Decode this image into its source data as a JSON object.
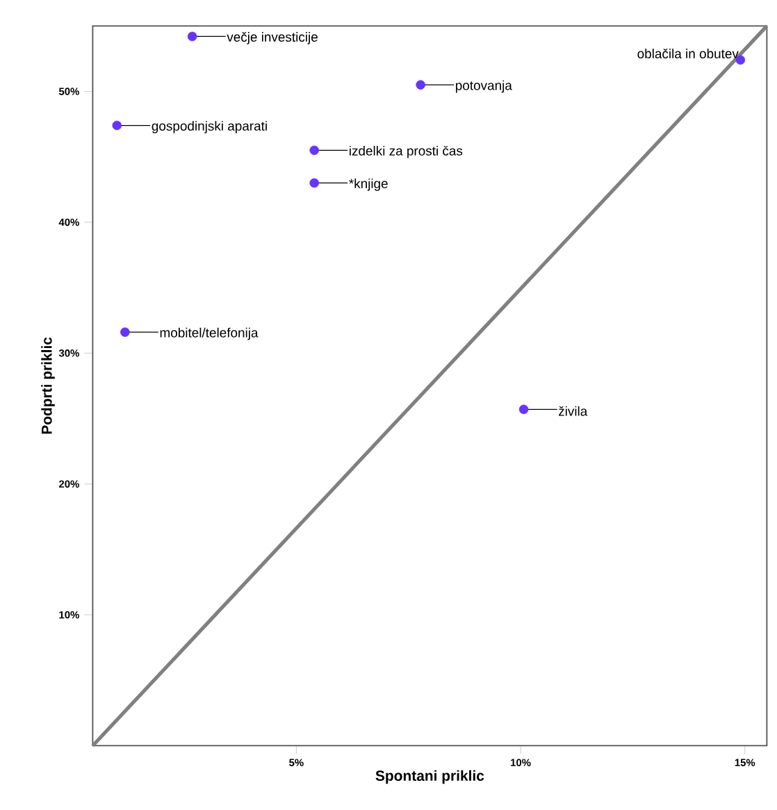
{
  "chart_data": {
    "type": "scatter",
    "xlabel": "Spontani priklic",
    "ylabel": "Podprti priklic",
    "xlim": [
      0.46,
      15.49
    ],
    "ylim": [
      0,
      55
    ],
    "xticks": [
      {
        "value": 5,
        "label": "5%"
      },
      {
        "value": 10,
        "label": "10%"
      },
      {
        "value": 15,
        "label": "15%"
      }
    ],
    "yticks": [
      {
        "value": 10,
        "label": "10%"
      },
      {
        "value": 20,
        "label": "20%"
      },
      {
        "value": 30,
        "label": "30%"
      },
      {
        "value": 40,
        "label": "40%"
      },
      {
        "value": 50,
        "label": "50%"
      }
    ],
    "grid": false,
    "series": [
      {
        "marker": "circle",
        "color": "#6633ff",
        "x": [
          2.68,
          1.0,
          5.4,
          5.4,
          1.18,
          7.77,
          14.9,
          10.07
        ],
        "values": [
          54.2,
          47.4,
          45.5,
          43.0,
          31.6,
          50.5,
          52.4,
          25.7
        ]
      },
      {
        "type": "line",
        "marker": "none",
        "color": "#808080",
        "x": [
          0.46,
          15.49
        ],
        "values": [
          0,
          55
        ]
      }
    ],
    "annotations": [
      {
        "text": "večje investicije",
        "x": 2.68,
        "y": 54.2
      },
      {
        "text": "gospodinjski aparati",
        "x": 1.0,
        "y": 47.4
      },
      {
        "text": "izdelki za prosti čas",
        "x": 5.4,
        "y": 45.5
      },
      {
        "text": "*knjige",
        "x": 5.4,
        "y": 43.0
      },
      {
        "text": "mobitel/telefonija",
        "x": 1.18,
        "y": 31.6
      },
      {
        "text": "potovanja",
        "x": 7.77,
        "y": 50.5
      },
      {
        "text": "oblačila in obutev",
        "x": 14.9,
        "y": 52.4
      },
      {
        "text": "živila",
        "x": 10.07,
        "y": 25.7
      }
    ]
  }
}
